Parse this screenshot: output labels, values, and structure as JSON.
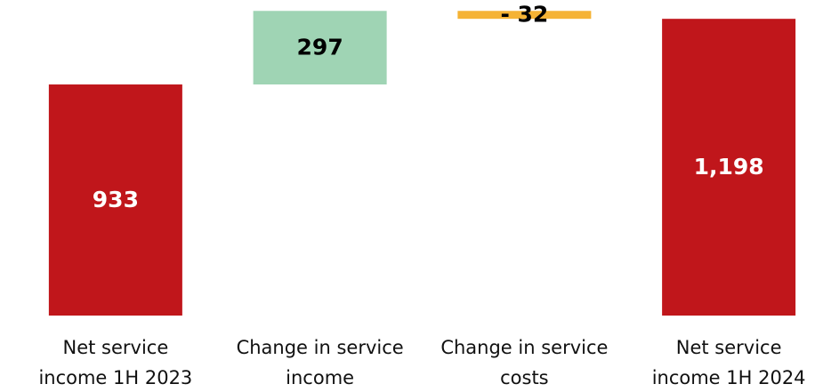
{
  "chart_data": {
    "type": "waterfall",
    "categories": [
      [
        "Net service",
        "income 1H 2023"
      ],
      [
        "Change in service",
        "income"
      ],
      [
        "Change in service",
        "costs"
      ],
      [
        "Net service",
        "income 1H 2024"
      ]
    ],
    "values": [
      933,
      297,
      -32,
      1198
    ],
    "value_labels": [
      "933",
      "297",
      "- 32",
      "1,198"
    ],
    "measure": [
      "total",
      "relative",
      "relative",
      "total"
    ],
    "colors": [
      "#c0161b",
      "#9fd4b4",
      "#f5b335",
      "#c0161b"
    ],
    "ylim": [
      0,
      1274
    ]
  }
}
